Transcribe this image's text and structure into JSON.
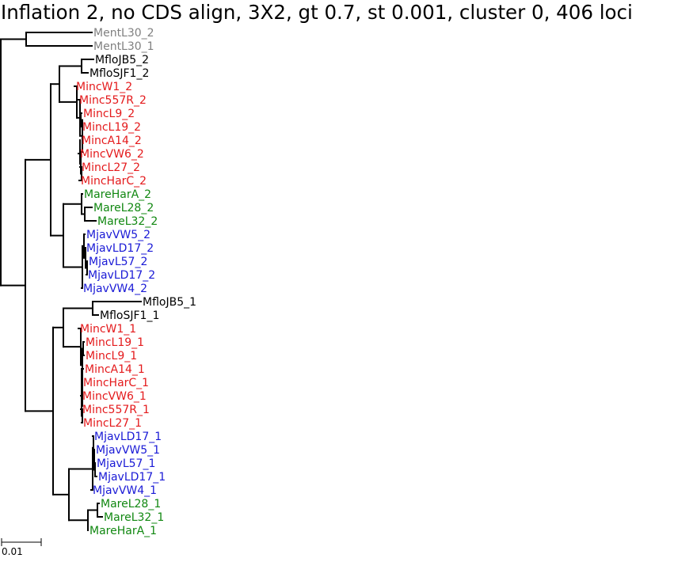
{
  "title": "Inflation 2, no CDS align, 3X2, gt 0.7, st 0.001, cluster 0, 406 loci",
  "colors": {
    "grey": "#808080",
    "black": "#000000",
    "red": "#e41a1c",
    "green": "#118811",
    "blue": "#1a1ad6"
  },
  "scale_bar": {
    "label": "0.01"
  },
  "leaves": [
    {
      "label": "MentL30_2",
      "color": "grey"
    },
    {
      "label": "MentL30_1",
      "color": "grey"
    },
    {
      "label": "MfloJB5_2",
      "color": "black"
    },
    {
      "label": "MfloSJF1_2",
      "color": "black"
    },
    {
      "label": "MincW1_2",
      "color": "red"
    },
    {
      "label": "Minc557R_2",
      "color": "red"
    },
    {
      "label": "MincL9_2",
      "color": "red"
    },
    {
      "label": "MincL19_2",
      "color": "red"
    },
    {
      "label": "MincA14_2",
      "color": "red"
    },
    {
      "label": "MincVW6_2",
      "color": "red"
    },
    {
      "label": "MincL27_2",
      "color": "red"
    },
    {
      "label": "MincHarC_2",
      "color": "red"
    },
    {
      "label": "MareHarA_2",
      "color": "green"
    },
    {
      "label": "MareL28_2",
      "color": "green"
    },
    {
      "label": "MareL32_2",
      "color": "green"
    },
    {
      "label": "MjavVW5_2",
      "color": "blue"
    },
    {
      "label": "MjavLD17_2",
      "color": "blue"
    },
    {
      "label": "MjavL57_2",
      "color": "blue"
    },
    {
      "label": "MjavLD17_2",
      "color": "blue"
    },
    {
      "label": "MjavVW4_2",
      "color": "blue"
    },
    {
      "label": "MfloJB5_1",
      "color": "black"
    },
    {
      "label": "MfloSJF1_1",
      "color": "black"
    },
    {
      "label": "MincW1_1",
      "color": "red"
    },
    {
      "label": "MincL19_1",
      "color": "red"
    },
    {
      "label": "MincL9_1",
      "color": "red"
    },
    {
      "label": "MincA14_1",
      "color": "red"
    },
    {
      "label": "MincHarC_1",
      "color": "red"
    },
    {
      "label": "MincVW6_1",
      "color": "red"
    },
    {
      "label": "Minc557R_1",
      "color": "red"
    },
    {
      "label": "MincL27_1",
      "color": "red"
    },
    {
      "label": "MjavLD17_1",
      "color": "blue"
    },
    {
      "label": "MjavVW5_1",
      "color": "blue"
    },
    {
      "label": "MjavL57_1",
      "color": "blue"
    },
    {
      "label": "MjavLD17_1",
      "color": "blue"
    },
    {
      "label": "MjavVW4_1",
      "color": "blue"
    },
    {
      "label": "MareL28_1",
      "color": "green"
    },
    {
      "label": "MareL32_1",
      "color": "green"
    },
    {
      "label": "MareHarA_1",
      "color": "green"
    }
  ]
}
